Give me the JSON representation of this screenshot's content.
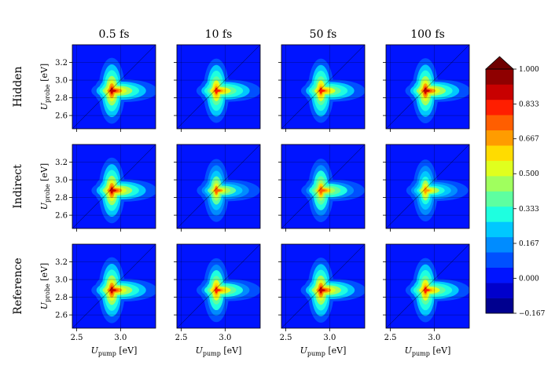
{
  "chart_data": {
    "type": "heatmap",
    "columns": [
      "0.5 fs",
      "10 fs",
      "50 fs",
      "100 fs"
    ],
    "rows": [
      "Hidden",
      "Indirect",
      "Reference"
    ],
    "x_label": {
      "main": "U",
      "sub": "pump",
      "unit": " [eV]"
    },
    "y_label": {
      "main": "U",
      "sub": "probe",
      "unit": " [eV]"
    },
    "x_range": [
      2.45,
      3.4
    ],
    "y_range": [
      2.45,
      3.4
    ],
    "x_ticks": [
      2.5,
      3.0
    ],
    "x_tick_labels": [
      "2.5",
      "3.0"
    ],
    "y_ticks": [
      2.6,
      2.8,
      3.0,
      3.2
    ],
    "y_tick_labels": [
      "2.6",
      "2.8",
      "3.0",
      "3.2"
    ],
    "grid": true,
    "diagonal_line": true,
    "peak_position": {
      "x": 2.9,
      "y": 2.88
    },
    "colorbar": {
      "min": -0.167,
      "max": 1.0,
      "extend": "max",
      "tick_values": [
        -0.167,
        0.0,
        0.167,
        0.333,
        0.5,
        0.667,
        0.833,
        1.0
      ],
      "tick_labels": [
        "−0.167",
        "0.000",
        "0.167",
        "0.333",
        "0.500",
        "0.667",
        "0.833",
        "1.000"
      ],
      "level_colors": [
        "#00008f",
        "#0000cc",
        "#0014ff",
        "#0050ff",
        "#008cff",
        "#00c8ff",
        "#1effe0",
        "#5effa0",
        "#a0ff5e",
        "#e0ff1e",
        "#ffdc00",
        "#ff9c00",
        "#ff5e00",
        "#ff1e00",
        "#c80000",
        "#8f0000"
      ],
      "extend_color": "#6e0000"
    },
    "panels": [
      {
        "row": "Hidden",
        "column": "0.5 fs",
        "peak_value": 1.0
      },
      {
        "row": "Hidden",
        "column": "10 fs",
        "peak_value": 0.9
      },
      {
        "row": "Hidden",
        "column": "50 fs",
        "peak_value": 0.9
      },
      {
        "row": "Hidden",
        "column": "100 fs",
        "peak_value": 0.95
      },
      {
        "row": "Indirect",
        "column": "0.5 fs",
        "peak_value": 0.98
      },
      {
        "row": "Indirect",
        "column": "10 fs",
        "peak_value": 0.82
      },
      {
        "row": "Indirect",
        "column": "50 fs",
        "peak_value": 0.85
      },
      {
        "row": "Indirect",
        "column": "100 fs",
        "peak_value": 0.75
      },
      {
        "row": "Reference",
        "column": "0.5 fs",
        "peak_value": 1.0
      },
      {
        "row": "Reference",
        "column": "10 fs",
        "peak_value": 0.88
      },
      {
        "row": "Reference",
        "column": "50 fs",
        "peak_value": 0.95
      },
      {
        "row": "Reference",
        "column": "100 fs",
        "peak_value": 0.9
      }
    ]
  }
}
